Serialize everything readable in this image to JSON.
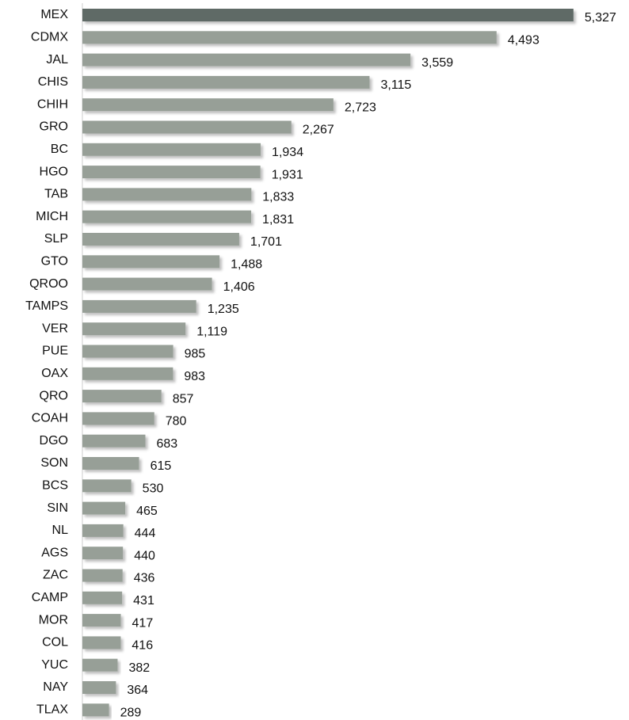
{
  "chart_data": {
    "type": "hbar",
    "categories": [
      "MEX",
      "CDMX",
      "JAL",
      "CHIS",
      "CHIH",
      "GRO",
      "BC",
      "HGO",
      "TAB",
      "MICH",
      "SLP",
      "GTO",
      "QROO",
      "TAMPS",
      "VER",
      "PUE",
      "OAX",
      "QRO",
      "COAH",
      "DGO",
      "SON",
      "BCS",
      "SIN",
      "NL",
      "AGS",
      "ZAC",
      "CAMP",
      "MOR",
      "COL",
      "YUC",
      "NAY",
      "TLAX"
    ],
    "values": [
      5327,
      4493,
      3559,
      3115,
      2723,
      2267,
      1934,
      1931,
      1833,
      1831,
      1701,
      1488,
      1406,
      1235,
      1119,
      985,
      983,
      857,
      780,
      683,
      615,
      530,
      465,
      444,
      440,
      436,
      431,
      417,
      416,
      382,
      364,
      289
    ],
    "value_labels": [
      "5,327",
      "4,493",
      "3,559",
      "3,115",
      "2,723",
      "2,267",
      "1,934",
      "1,931",
      "1,833",
      "1,831",
      "1,701",
      "1,488",
      "1,406",
      "1,235",
      "1,119",
      "985",
      "983",
      "857",
      "780",
      "683",
      "615",
      "530",
      "465",
      "444",
      "440",
      "436",
      "431",
      "417",
      "416",
      "382",
      "364",
      "289"
    ],
    "colors": [
      "#5f6b66",
      "#979f97",
      "#979f97",
      "#979f97",
      "#979f97",
      "#979f97",
      "#979f97",
      "#979f97",
      "#979f97",
      "#979f97",
      "#979f97",
      "#979f97",
      "#979f97",
      "#979f97",
      "#979f97",
      "#979f97",
      "#979f97",
      "#979f97",
      "#979f97",
      "#979f97",
      "#979f97",
      "#979f97",
      "#979f97",
      "#979f97",
      "#979f97",
      "#979f97",
      "#979f97",
      "#979f97",
      "#979f97",
      "#979f97",
      "#979f97",
      "#979f97"
    ],
    "xlim": [
      0,
      5500
    ]
  }
}
